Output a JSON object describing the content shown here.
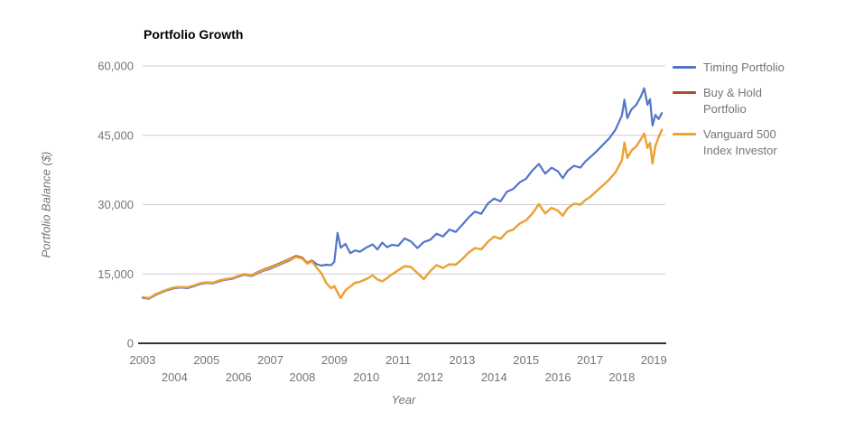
{
  "chart_data": {
    "type": "line",
    "title": "Portfolio Growth",
    "xlabel": "Year",
    "ylabel": "Portfolio Balance ($)",
    "xlim": [
      2003,
      2019.36
    ],
    "ylim": [
      0,
      60000
    ],
    "x_ticks": [
      2003,
      2004,
      2005,
      2006,
      2007,
      2008,
      2009,
      2010,
      2011,
      2012,
      2013,
      2014,
      2015,
      2016,
      2017,
      2018,
      2019
    ],
    "y_ticks": [
      0,
      15000,
      30000,
      45000,
      60000
    ],
    "y_tick_labels": [
      "0",
      "15,000",
      "30,000",
      "45,000",
      "60,000"
    ],
    "grid": true,
    "legend_position": "right",
    "colors": {
      "grid": "#cccccc",
      "axis": "#333333",
      "tick_text": "#757575"
    },
    "x": [
      2003.0,
      2003.2,
      2003.4,
      2003.6,
      2003.8,
      2004.0,
      2004.2,
      2004.4,
      2004.6,
      2004.8,
      2005.0,
      2005.2,
      2005.4,
      2005.6,
      2005.8,
      2006.0,
      2006.2,
      2006.4,
      2006.6,
      2006.8,
      2007.0,
      2007.2,
      2007.4,
      2007.6,
      2007.8,
      2008.0,
      2008.15,
      2008.3,
      2008.45,
      2008.6,
      2008.75,
      2008.9,
      2009.0,
      2009.1,
      2009.2,
      2009.35,
      2009.5,
      2009.65,
      2009.8,
      2010.0,
      2010.2,
      2010.35,
      2010.5,
      2010.65,
      2010.8,
      2011.0,
      2011.2,
      2011.4,
      2011.6,
      2011.8,
      2012.0,
      2012.2,
      2012.4,
      2012.6,
      2012.8,
      2013.0,
      2013.2,
      2013.4,
      2013.6,
      2013.8,
      2014.0,
      2014.2,
      2014.4,
      2014.6,
      2014.8,
      2015.0,
      2015.2,
      2015.4,
      2015.6,
      2015.8,
      2016.0,
      2016.15,
      2016.3,
      2016.5,
      2016.7,
      2016.85,
      2017.0,
      2017.2,
      2017.4,
      2017.6,
      2017.8,
      2018.0,
      2018.08,
      2018.17,
      2018.3,
      2018.45,
      2018.6,
      2018.7,
      2018.8,
      2018.88,
      2018.96,
      2019.05,
      2019.15,
      2019.25
    ],
    "series": [
      {
        "name": "Timing Portfolio",
        "color": "#5374C8",
        "values": [
          9850,
          9650,
          10450,
          11050,
          11550,
          11950,
          12050,
          11950,
          12350,
          12850,
          13050,
          12950,
          13450,
          13750,
          13950,
          14450,
          14850,
          14550,
          15150,
          15750,
          16150,
          16750,
          17350,
          17950,
          18700,
          18300,
          17400,
          17900,
          17100,
          16800,
          17000,
          16900,
          17600,
          23900,
          20700,
          21500,
          19500,
          20100,
          19800,
          20700,
          21400,
          20300,
          21800,
          20800,
          21300,
          21100,
          22700,
          22000,
          20600,
          21900,
          22400,
          23700,
          23100,
          24600,
          24100,
          25600,
          27200,
          28500,
          28000,
          30200,
          31300,
          30700,
          32800,
          33400,
          34800,
          35600,
          37400,
          38800,
          36700,
          38000,
          37200,
          35700,
          37300,
          38400,
          38000,
          39300,
          40200,
          41500,
          42900,
          44300,
          46200,
          49300,
          52700,
          48700,
          50600,
          51600,
          53500,
          55200,
          51600,
          52800,
          47100,
          49400,
          48500,
          49800
        ]
      },
      {
        "name": "Buy & Hold Portfolio",
        "color": "#B5492B",
        "values": [
          10000,
          9800,
          10600,
          11200,
          11700,
          12100,
          12200,
          12100,
          12500,
          13000,
          13200,
          13100,
          13600,
          13900,
          14100,
          14600,
          15000,
          14700,
          15400,
          16000,
          16450,
          17050,
          17650,
          18250,
          18900,
          18500,
          17350,
          17800,
          16300,
          15100,
          13000,
          11900,
          12400,
          11000,
          9800,
          11500,
          12300,
          13100,
          13300,
          13900,
          14700,
          13800,
          13400,
          14100,
          14900,
          15800,
          16700,
          16500,
          15200,
          13900,
          15600,
          16900,
          16300,
          17100,
          17000,
          18200,
          19600,
          20600,
          20300,
          21900,
          23100,
          22600,
          24100,
          24600,
          25900,
          26600,
          28100,
          30100,
          28100,
          29300,
          28700,
          27600,
          29200,
          30200,
          30000,
          31000,
          31600,
          32900,
          34100,
          35400,
          37000,
          39600,
          43400,
          40100,
          41700,
          42600,
          44200,
          45400,
          42300,
          43300,
          38900,
          42700,
          44600,
          46200
        ]
      },
      {
        "name": "Vanguard 500 Index Investor",
        "color": "#EDA42F",
        "values": [
          10000,
          9800,
          10600,
          11200,
          11700,
          12100,
          12200,
          12100,
          12500,
          13000,
          13200,
          13100,
          13600,
          13900,
          14100,
          14600,
          15000,
          14700,
          15300,
          15900,
          16300,
          16900,
          17500,
          18100,
          18700,
          18300,
          17200,
          17700,
          16300,
          15100,
          13000,
          11900,
          12400,
          11000,
          9800,
          11500,
          12300,
          13100,
          13300,
          13900,
          14700,
          13800,
          13400,
          14100,
          14900,
          15800,
          16700,
          16500,
          15200,
          13900,
          15600,
          16900,
          16300,
          17100,
          17000,
          18200,
          19600,
          20600,
          20300,
          21900,
          23100,
          22600,
          24100,
          24600,
          25900,
          26600,
          28100,
          30100,
          28100,
          29300,
          28700,
          27600,
          29200,
          30200,
          30000,
          31000,
          31600,
          32900,
          34100,
          35400,
          37000,
          39600,
          43400,
          40100,
          41700,
          42600,
          44200,
          45400,
          42300,
          43300,
          38900,
          42700,
          44600,
          46200
        ]
      }
    ]
  }
}
